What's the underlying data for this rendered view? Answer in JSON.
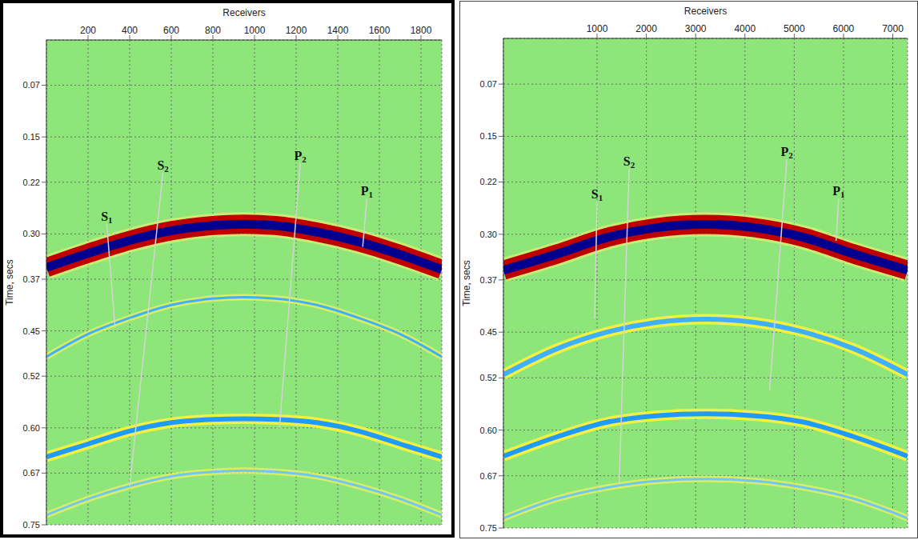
{
  "chart_data": [
    {
      "type": "line",
      "x_label": "Receivers",
      "y_label": "Time, secs",
      "xlim": [
        0,
        1900
      ],
      "xticks": [
        200,
        400,
        600,
        800,
        1000,
        1200,
        1400,
        1600,
        1800
      ],
      "ylim": [
        0,
        0.75
      ],
      "yticks": [
        0.07,
        0.15,
        0.22,
        {
          "value": 0.3,
          "label": "0.30"
        },
        0.37,
        0.45,
        0.52,
        {
          "value": 0.6,
          "label": "0.60"
        },
        0.67,
        0.75
      ],
      "grid": true,
      "series": [
        {
          "color": "#70c8f0",
          "line_style": "faint",
          "x": [
            0,
            200,
            400,
            600,
            800,
            950,
            1100,
            1300,
            1500,
            1700,
            1900
          ],
          "values": [
            0.735,
            0.71,
            0.69,
            0.675,
            0.668,
            0.666,
            0.668,
            0.675,
            0.69,
            0.71,
            0.735
          ]
        },
        {
          "color": "#3fb0ff",
          "line_style": "faint",
          "x": [
            0,
            200,
            400,
            600,
            800,
            950,
            1100,
            1300,
            1500,
            1700,
            1900
          ],
          "values": [
            0.49,
            0.455,
            0.43,
            0.41,
            0.4,
            0.398,
            0.4,
            0.41,
            0.43,
            0.455,
            0.49
          ]
        },
        {
          "color": "#1f9bff",
          "line_style": "solid",
          "x": [
            0,
            200,
            400,
            600,
            800,
            950,
            1100,
            1300,
            1500,
            1700,
            1900
          ],
          "values": [
            0.645,
            0.625,
            0.605,
            0.592,
            0.587,
            0.586,
            0.587,
            0.592,
            0.605,
            0.625,
            0.645
          ]
        },
        {
          "color": "#00008f",
          "line_style": "band",
          "x": [
            0,
            200,
            400,
            600,
            800,
            950,
            1100,
            1300,
            1500,
            1700,
            1900
          ],
          "values": [
            0.352,
            0.33,
            0.31,
            0.295,
            0.287,
            0.285,
            0.287,
            0.297,
            0.312,
            0.332,
            0.355
          ]
        }
      ],
      "annotations": [
        {
          "text": "S1",
          "x": 290,
          "y": 0.285,
          "x_end": 330,
          "y_end": 0.445
        },
        {
          "text": "S2",
          "x": 560,
          "y": 0.205,
          "x_end": 400,
          "y_end": 0.69
        },
        {
          "text": "P2",
          "x": 1220,
          "y": 0.19,
          "x_end": 1120,
          "y_end": 0.6
        },
        {
          "text": "P1",
          "x": 1540,
          "y": 0.245,
          "x_end": 1520,
          "y_end": 0.32
        }
      ]
    },
    {
      "type": "line",
      "x_label": "Receivers",
      "y_label": "Time, secs",
      "xlim": [
        -900,
        7300
      ],
      "xticks": [
        1000,
        2000,
        3000,
        4000,
        5000,
        6000,
        7000
      ],
      "ylim": [
        0,
        0.75
      ],
      "yticks": [
        0.07,
        0.15,
        0.22,
        {
          "value": 0.3,
          "label": "0.30"
        },
        0.37,
        0.45,
        0.52,
        {
          "value": 0.6,
          "label": "0.60"
        },
        0.67,
        0.75
      ],
      "grid": true,
      "series": [
        {
          "color": "#70c8f0",
          "line_style": "faint",
          "x": [
            -900,
            200,
            1200,
            2200,
            3200,
            4200,
            5200,
            6200,
            7300
          ],
          "values": [
            0.735,
            0.705,
            0.688,
            0.678,
            0.675,
            0.678,
            0.688,
            0.705,
            0.735
          ]
        },
        {
          "color": "#3fb0ff",
          "line_style": "solid",
          "x": [
            -900,
            200,
            1200,
            2200,
            3200,
            4200,
            5200,
            6200,
            7300
          ],
          "values": [
            0.515,
            0.475,
            0.45,
            0.435,
            0.43,
            0.435,
            0.45,
            0.475,
            0.515
          ]
        },
        {
          "color": "#1f9bff",
          "line_style": "solid",
          "x": [
            -900,
            200,
            1200,
            2200,
            3200,
            4200,
            5200,
            6200,
            7300
          ],
          "values": [
            0.64,
            0.61,
            0.588,
            0.578,
            0.575,
            0.578,
            0.588,
            0.61,
            0.64
          ]
        },
        {
          "color": "#00008f",
          "line_style": "band",
          "x": [
            -900,
            200,
            1200,
            2200,
            3200,
            4200,
            5200,
            6200,
            7300
          ],
          "values": [
            0.355,
            0.33,
            0.305,
            0.29,
            0.285,
            0.29,
            0.305,
            0.33,
            0.355
          ]
        }
      ],
      "annotations": [
        {
          "text": "S1",
          "x": 1000,
          "y": 0.25,
          "x_end": 950,
          "y_end": 0.43
        },
        {
          "text": "S2",
          "x": 1650,
          "y": 0.2,
          "x_end": 1450,
          "y_end": 0.68
        },
        {
          "text": "P2",
          "x": 4850,
          "y": 0.185,
          "x_end": 4500,
          "y_end": 0.54
        },
        {
          "text": "P1",
          "x": 5900,
          "y": 0.245,
          "x_end": 5850,
          "y_end": 0.31
        }
      ]
    }
  ]
}
